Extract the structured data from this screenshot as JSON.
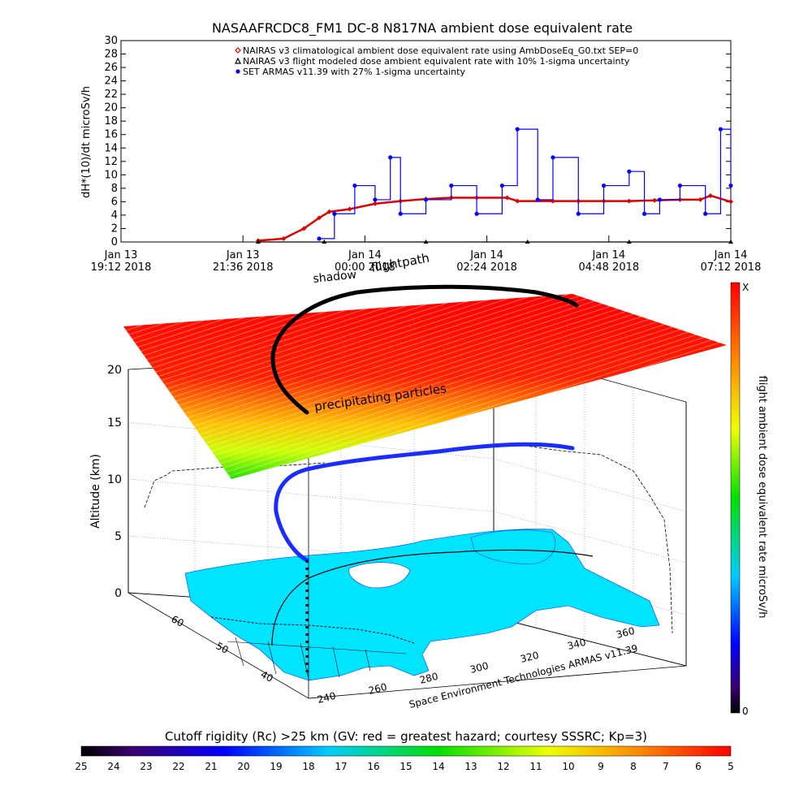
{
  "top_chart": {
    "title": "NASAAFRCDC8_FM1 DC-8    N817NA ambient dose equivalent rate",
    "ylabel": "dH*(10)/dt microSv/h",
    "y_ticks": [
      "0",
      "2",
      "4",
      "6",
      "8",
      "10",
      "12",
      "14",
      "16",
      "18",
      "20",
      "22",
      "24",
      "26",
      "28",
      "30"
    ],
    "x_ticks": [
      {
        "line1": "Jan 13",
        "line2": "19:12 2018"
      },
      {
        "line1": "Jan 13",
        "line2": "21:36 2018"
      },
      {
        "line1": "Jan 14",
        "line2": "00:00 2018"
      },
      {
        "line1": "Jan 14",
        "line2": "02:24 2018"
      },
      {
        "line1": "Jan 14",
        "line2": "04:48 2018"
      },
      {
        "line1": "Jan 14",
        "line2": "07:12 2018"
      }
    ],
    "legend": [
      {
        "label": "NAIRAS v3 climatological ambient dose equivalent rate using AmbDoseEq_G0.txt SEP=0",
        "color": "#e00000",
        "marker": "diamond"
      },
      {
        "label": "NAIRAS v3 flight modeled dose ambient equivalent rate with 10% 1-sigma uncertainty",
        "color": "#000000",
        "marker": "triangle"
      },
      {
        "label": "SET ARMAS v11.39 with 27% 1-sigma uncertainty",
        "color": "#0000ff",
        "marker": "circle"
      }
    ]
  },
  "scene": {
    "ylabel": "Altitude (km)",
    "alt_ticks": [
      "0",
      "5",
      "10",
      "15",
      "20"
    ],
    "lat_ticks": [
      "40",
      "50",
      "60"
    ],
    "lon_ticks": [
      "240",
      "260",
      "280",
      "300",
      "320",
      "340",
      "360"
    ],
    "annotations": {
      "shadow": "shadow",
      "flightpath": "flightpath",
      "precipitating": "precipitating particles",
      "credit": "Space Environment Technologies ARMAS v11.39"
    }
  },
  "colorbar_right": {
    "label": "flight ambient dose equivalent rate microSv/h",
    "top": "X",
    "bottom": "0"
  },
  "colorbar_bottom": {
    "title": "Cutoff rigidity (Rc) >25 km (GV: red = greatest hazard; courtesy SSSRC; Kp=3)",
    "ticks": [
      "25",
      "24",
      "23",
      "22",
      "21",
      "20",
      "19",
      "18",
      "17",
      "16",
      "15",
      "14",
      "13",
      "12",
      "11",
      "10",
      "9",
      "8",
      "7",
      "6",
      "5"
    ]
  },
  "colors": {
    "nairas_clim": "#e00000",
    "nairas_flight": "#000000",
    "armas": "#0000ff",
    "land": "#00e5ff"
  },
  "chart_data": {
    "type": "line",
    "title": "NASAAFRCDC8_FM1 DC-8    N817NA ambient dose equivalent rate",
    "ylabel": "dH*(10)/dt microSv/h",
    "xlabel": "",
    "ylim": [
      0,
      30
    ],
    "xlim": [
      "Jan 13 19:12 2018",
      "Jan 14 07:12 2018"
    ],
    "x_unit": "hours after Jan 13 19:12 2018",
    "series": [
      {
        "name": "NAIRAS v3 climatological ambient dose equivalent rate using AmbDoseEq_G0.txt SEP=0",
        "color": "#e00000",
        "x": [
          2.7,
          3.2,
          3.6,
          3.9,
          4.1,
          4.5,
          5.0,
          5.5,
          6.0,
          6.5,
          7.0,
          7.6,
          7.8,
          8.5,
          9.0,
          9.5,
          10.0,
          10.5,
          11.0,
          11.4,
          11.6,
          12.0
        ],
        "y": [
          0.2,
          0.5,
          2.0,
          3.6,
          4.5,
          4.9,
          5.7,
          6.1,
          6.4,
          6.6,
          6.6,
          6.6,
          6.1,
          6.1,
          6.1,
          6.1,
          6.1,
          6.2,
          6.3,
          6.3,
          6.9,
          6.0
        ]
      },
      {
        "name": "NAIRAS v3 flight modeled dose ambient equivalent rate with 10% 1-sigma uncertainty",
        "color": "#000000",
        "x": [
          2.7,
          4.0,
          6.0,
          8.0,
          10.0,
          12.0
        ],
        "y": [
          0.0,
          0.0,
          0.0,
          0.0,
          0.0,
          0.0
        ]
      },
      {
        "name": "SET ARMAS v11.39 with 27% 1-sigma uncertainty",
        "color": "#0000ff",
        "x": [
          3.9,
          4.2,
          4.6,
          5.0,
          5.3,
          5.5,
          6.0,
          6.5,
          7.0,
          7.5,
          7.8,
          8.2,
          8.5,
          9.0,
          9.5,
          10.0,
          10.3,
          10.6,
          11.0,
          11.5,
          11.8,
          12.0
        ],
        "y": [
          0.5,
          4.2,
          8.4,
          6.3,
          12.6,
          4.2,
          6.3,
          8.4,
          4.2,
          8.4,
          16.8,
          6.3,
          12.6,
          4.2,
          8.4,
          10.5,
          4.2,
          6.3,
          8.4,
          4.2,
          16.8,
          8.4
        ]
      }
    ]
  }
}
